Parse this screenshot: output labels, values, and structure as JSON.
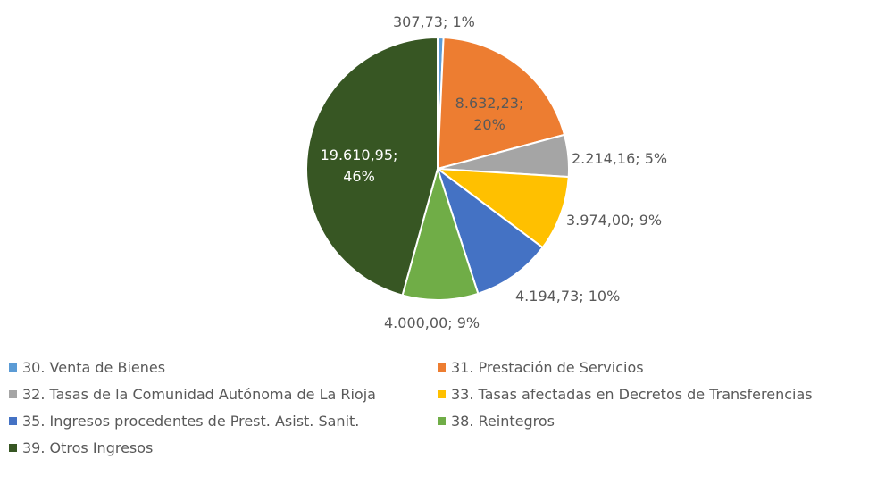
{
  "chart_data": {
    "type": "pie",
    "categories": [
      "30. Venta de Bienes",
      "31. Prestación de Servicios",
      "32. Tasas de la Comunidad Autónoma de La Rioja",
      "33. Tasas afectadas en Decretos de Transferencias",
      "35. Ingresos procedentes de Prest. Asist. Sanit.",
      "38. Reintegros",
      "39. Otros Ingresos"
    ],
    "values": [
      307.73,
      8632.23,
      2214.16,
      3974.0,
      4194.73,
      4000.0,
      19610.95
    ],
    "value_labels": [
      "307,73; 1%",
      "8.632,23; 20%",
      "2.214,16; 5%",
      "3.974,00; 9%",
      "4.194,73; 10%",
      "4.000,00; 9%",
      "19.610,95; 46%"
    ],
    "colors": [
      "#5b9bd5",
      "#ed7d31",
      "#a5a5a5",
      "#ffc000",
      "#4472c4",
      "#70ad47",
      "#375623"
    ],
    "legend": "bottom"
  }
}
